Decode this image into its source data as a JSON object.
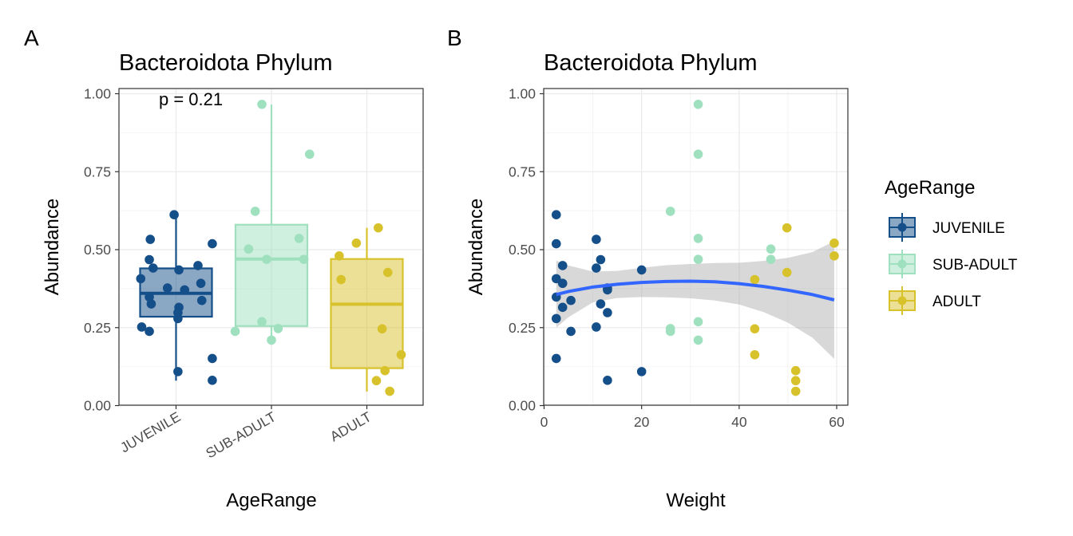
{
  "colors": {
    "JUVENILE": "#154f8a",
    "SUB-ADULT": "#9fe0bf",
    "ADULT": "#d8c22c",
    "smooth_line": "#3366ff",
    "ribbon": "#a9a9a9",
    "grid_major": "#ebebeb",
    "grid_minor": "#f4f4f4"
  },
  "legend": {
    "title": "AgeRange",
    "items": [
      "JUVENILE",
      "SUB-ADULT",
      "ADULT"
    ]
  },
  "chart_data": [
    {
      "tag": "A",
      "type": "boxplot",
      "title": "Bacteroidota Phylum",
      "xlabel": "AgeRange",
      "ylabel": "Abundance",
      "categories": [
        "JUVENILE",
        "SUB-ADULT",
        "ADULT"
      ],
      "ylim": [
        0,
        1
      ],
      "yticks": [
        "0.00",
        "0.25",
        "0.50",
        "0.75",
        "1.00"
      ],
      "annotation": "p = 0.21",
      "boxes": [
        {
          "group": "JUVENILE",
          "lower_whisker": 0.08,
          "q1": 0.285,
          "median": 0.36,
          "q3": 0.44,
          "upper_whisker": 0.61
        },
        {
          "group": "SUB-ADULT",
          "lower_whisker": 0.21,
          "q1": 0.255,
          "median": 0.47,
          "q3": 0.58,
          "upper_whisker": 0.965
        },
        {
          "group": "ADULT",
          "lower_whisker": 0.045,
          "q1": 0.12,
          "median": 0.325,
          "q3": 0.47,
          "upper_whisker": 0.57
        }
      ],
      "points": [
        {
          "group": "JUVENILE",
          "offset": -0.02,
          "y": 0.612
        },
        {
          "group": "JUVENILE",
          "offset": -0.27,
          "y": 0.533
        },
        {
          "group": "JUVENILE",
          "offset": 0.38,
          "y": 0.519
        },
        {
          "group": "JUVENILE",
          "offset": -0.28,
          "y": 0.468
        },
        {
          "group": "JUVENILE",
          "offset": 0.23,
          "y": 0.449
        },
        {
          "group": "JUVENILE",
          "offset": -0.24,
          "y": 0.441
        },
        {
          "group": "JUVENILE",
          "offset": 0.03,
          "y": 0.435
        },
        {
          "group": "JUVENILE",
          "offset": -0.37,
          "y": 0.407
        },
        {
          "group": "JUVENILE",
          "offset": 0.26,
          "y": 0.392
        },
        {
          "group": "JUVENILE",
          "offset": -0.09,
          "y": 0.377
        },
        {
          "group": "JUVENILE",
          "offset": 0.09,
          "y": 0.371
        },
        {
          "group": "JUVENILE",
          "offset": -0.28,
          "y": 0.348
        },
        {
          "group": "JUVENILE",
          "offset": 0.27,
          "y": 0.337
        },
        {
          "group": "JUVENILE",
          "offset": -0.26,
          "y": 0.326
        },
        {
          "group": "JUVENILE",
          "offset": 0.03,
          "y": 0.315
        },
        {
          "group": "JUVENILE",
          "offset": 0.02,
          "y": 0.298
        },
        {
          "group": "JUVENILE",
          "offset": 0.02,
          "y": 0.279
        },
        {
          "group": "JUVENILE",
          "offset": -0.36,
          "y": 0.252
        },
        {
          "group": "JUVENILE",
          "offset": -0.28,
          "y": 0.238
        },
        {
          "group": "JUVENILE",
          "offset": 0.38,
          "y": 0.151
        },
        {
          "group": "JUVENILE",
          "offset": 0.02,
          "y": 0.109
        },
        {
          "group": "JUVENILE",
          "offset": 0.38,
          "y": 0.081
        },
        {
          "group": "SUB-ADULT",
          "offset": -0.1,
          "y": 0.966
        },
        {
          "group": "SUB-ADULT",
          "offset": 0.4,
          "y": 0.806
        },
        {
          "group": "SUB-ADULT",
          "offset": -0.17,
          "y": 0.623
        },
        {
          "group": "SUB-ADULT",
          "offset": 0.29,
          "y": 0.536
        },
        {
          "group": "SUB-ADULT",
          "offset": -0.24,
          "y": 0.502
        },
        {
          "group": "SUB-ADULT",
          "offset": -0.05,
          "y": 0.469
        },
        {
          "group": "SUB-ADULT",
          "offset": 0.34,
          "y": 0.469
        },
        {
          "group": "SUB-ADULT",
          "offset": -0.1,
          "y": 0.269
        },
        {
          "group": "SUB-ADULT",
          "offset": 0.07,
          "y": 0.247
        },
        {
          "group": "SUB-ADULT",
          "offset": -0.38,
          "y": 0.238
        },
        {
          "group": "SUB-ADULT",
          "offset": 0.0,
          "y": 0.21
        },
        {
          "group": "ADULT",
          "offset": 0.12,
          "y": 0.57
        },
        {
          "group": "ADULT",
          "offset": -0.11,
          "y": 0.521
        },
        {
          "group": "ADULT",
          "offset": -0.29,
          "y": 0.48
        },
        {
          "group": "ADULT",
          "offset": 0.22,
          "y": 0.427
        },
        {
          "group": "ADULT",
          "offset": -0.27,
          "y": 0.404
        },
        {
          "group": "ADULT",
          "offset": 0.16,
          "y": 0.246
        },
        {
          "group": "ADULT",
          "offset": 0.36,
          "y": 0.163
        },
        {
          "group": "ADULT",
          "offset": 0.19,
          "y": 0.112
        },
        {
          "group": "ADULT",
          "offset": 0.1,
          "y": 0.08
        },
        {
          "group": "ADULT",
          "offset": 0.24,
          "y": 0.046
        }
      ]
    },
    {
      "tag": "B",
      "type": "scatter",
      "title": "Bacteroidota Phylum",
      "xlabel": "Weight",
      "ylabel": "Abundance",
      "xlim": [
        0,
        60
      ],
      "ylim": [
        0,
        1
      ],
      "xticks": [
        "0",
        "20",
        "40",
        "60"
      ],
      "yticks": [
        "0.00",
        "0.25",
        "0.50",
        "0.75",
        "1.00"
      ],
      "points": [
        {
          "x": 2.5,
          "y": 0.612,
          "group": "JUVENILE"
        },
        {
          "x": 2.5,
          "y": 0.519,
          "group": "JUVENILE"
        },
        {
          "x": 2.5,
          "y": 0.407,
          "group": "JUVENILE"
        },
        {
          "x": 2.5,
          "y": 0.348,
          "group": "JUVENILE"
        },
        {
          "x": 2.5,
          "y": 0.279,
          "group": "JUVENILE"
        },
        {
          "x": 2.5,
          "y": 0.151,
          "group": "JUVENILE"
        },
        {
          "x": 3.8,
          "y": 0.449,
          "group": "JUVENILE"
        },
        {
          "x": 3.8,
          "y": 0.392,
          "group": "JUVENILE"
        },
        {
          "x": 3.8,
          "y": 0.315,
          "group": "JUVENILE"
        },
        {
          "x": 5.5,
          "y": 0.337,
          "group": "JUVENILE"
        },
        {
          "x": 5.5,
          "y": 0.238,
          "group": "JUVENILE"
        },
        {
          "x": 10.7,
          "y": 0.533,
          "group": "JUVENILE"
        },
        {
          "x": 10.7,
          "y": 0.441,
          "group": "JUVENILE"
        },
        {
          "x": 10.7,
          "y": 0.252,
          "group": "JUVENILE"
        },
        {
          "x": 11.6,
          "y": 0.468,
          "group": "JUVENILE"
        },
        {
          "x": 11.6,
          "y": 0.326,
          "group": "JUVENILE"
        },
        {
          "x": 13.0,
          "y": 0.377,
          "group": "JUVENILE"
        },
        {
          "x": 13.0,
          "y": 0.371,
          "group": "JUVENILE"
        },
        {
          "x": 13.0,
          "y": 0.298,
          "group": "JUVENILE"
        },
        {
          "x": 13.0,
          "y": 0.081,
          "group": "JUVENILE"
        },
        {
          "x": 20.0,
          "y": 0.435,
          "group": "JUVENILE"
        },
        {
          "x": 20.0,
          "y": 0.109,
          "group": "JUVENILE"
        },
        {
          "x": 25.9,
          "y": 0.623,
          "group": "SUB-ADULT"
        },
        {
          "x": 25.9,
          "y": 0.247,
          "group": "SUB-ADULT"
        },
        {
          "x": 25.9,
          "y": 0.238,
          "group": "SUB-ADULT"
        },
        {
          "x": 31.6,
          "y": 0.966,
          "group": "SUB-ADULT"
        },
        {
          "x": 31.6,
          "y": 0.806,
          "group": "SUB-ADULT"
        },
        {
          "x": 31.6,
          "y": 0.536,
          "group": "SUB-ADULT"
        },
        {
          "x": 31.6,
          "y": 0.469,
          "group": "SUB-ADULT"
        },
        {
          "x": 31.6,
          "y": 0.269,
          "group": "SUB-ADULT"
        },
        {
          "x": 31.6,
          "y": 0.21,
          "group": "SUB-ADULT"
        },
        {
          "x": 46.5,
          "y": 0.502,
          "group": "SUB-ADULT"
        },
        {
          "x": 46.5,
          "y": 0.469,
          "group": "SUB-ADULT"
        },
        {
          "x": 43.2,
          "y": 0.404,
          "group": "ADULT"
        },
        {
          "x": 43.2,
          "y": 0.246,
          "group": "ADULT"
        },
        {
          "x": 43.2,
          "y": 0.163,
          "group": "ADULT"
        },
        {
          "x": 49.8,
          "y": 0.57,
          "group": "ADULT"
        },
        {
          "x": 49.8,
          "y": 0.427,
          "group": "ADULT"
        },
        {
          "x": 51.6,
          "y": 0.112,
          "group": "ADULT"
        },
        {
          "x": 51.6,
          "y": 0.08,
          "group": "ADULT"
        },
        {
          "x": 51.6,
          "y": 0.046,
          "group": "ADULT"
        },
        {
          "x": 59.5,
          "y": 0.521,
          "group": "ADULT"
        },
        {
          "x": 59.5,
          "y": 0.48,
          "group": "ADULT"
        }
      ],
      "smooth": {
        "x": [
          2.5,
          5,
          10,
          15,
          20,
          25,
          30,
          35,
          40,
          45,
          50,
          55,
          59.5
        ],
        "y": [
          0.356,
          0.366,
          0.38,
          0.389,
          0.395,
          0.398,
          0.399,
          0.397,
          0.391,
          0.382,
          0.37,
          0.356,
          0.339
        ],
        "lower": [
          0.25,
          0.283,
          0.331,
          0.345,
          0.348,
          0.347,
          0.344,
          0.337,
          0.324,
          0.3,
          0.266,
          0.218,
          0.15
        ],
        "upper": [
          0.465,
          0.449,
          0.43,
          0.432,
          0.442,
          0.45,
          0.454,
          0.457,
          0.458,
          0.464,
          0.474,
          0.492,
          0.527
        ]
      }
    }
  ]
}
